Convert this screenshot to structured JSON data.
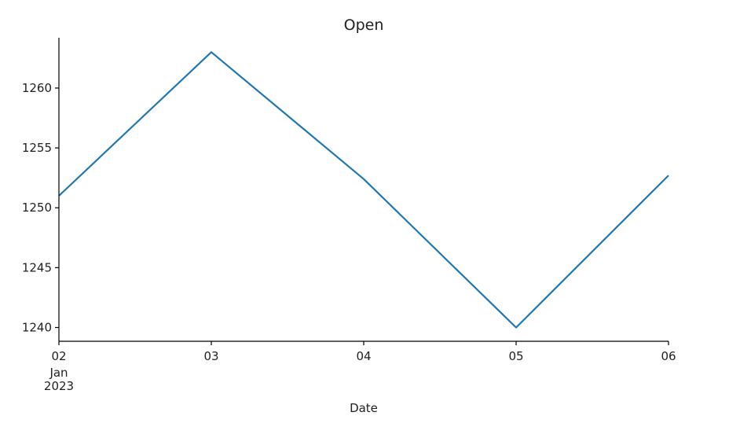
{
  "chart_data": {
    "type": "line",
    "title": "Open",
    "xlabel": "Date",
    "ylabel": "",
    "x": [
      "2023-01-02",
      "2023-01-03",
      "2023-01-04",
      "2023-01-05",
      "2023-01-06"
    ],
    "series": [
      {
        "values": [
          1251.0,
          1263.0,
          1252.4,
          1240.0,
          1252.7
        ]
      }
    ],
    "x_tick_labels": [
      "02",
      "03",
      "04",
      "05",
      "06"
    ],
    "x_tick_sublabels": [
      "Jan",
      "2023"
    ],
    "y_ticks": [
      1240,
      1245,
      1250,
      1255,
      1260
    ],
    "y_tick_labels": [
      "1240",
      "1245",
      "1250",
      "1255",
      "1260"
    ],
    "ylim": [
      1238.85,
      1264.2
    ],
    "xlim": [
      "2023-01-02",
      "2023-01-06"
    ],
    "grid": false,
    "legend": "none",
    "line_color": "#1f77b4"
  }
}
